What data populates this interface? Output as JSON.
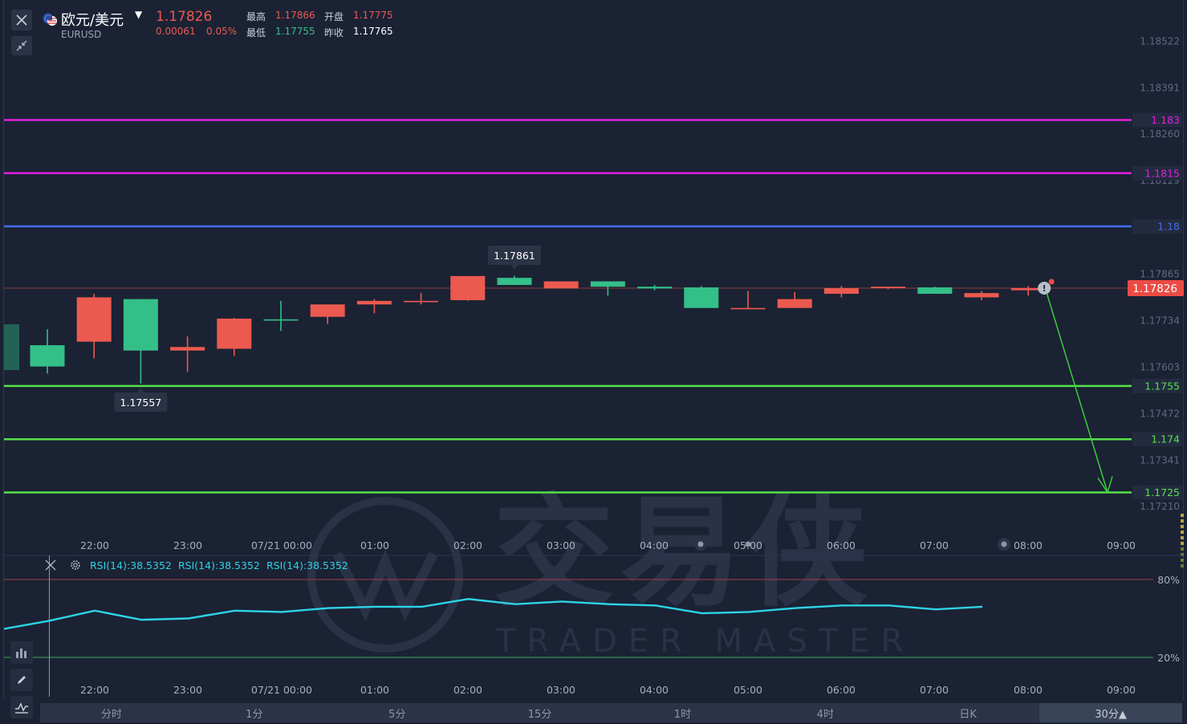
{
  "header": {
    "pair_name": "欧元/美元",
    "symbol": "EURUSD",
    "price": "1.17826",
    "change": "0.00061",
    "change_pct": "0.05%",
    "high_label": "最高",
    "high": "1.17866",
    "open_label": "开盘",
    "open": "1.17775",
    "low_label": "最低",
    "low": "1.17755",
    "prev_close_label": "昨收",
    "prev_close": "1.17765"
  },
  "icons": {
    "close": "close-icon",
    "collapse": "collapse-arrows-icon",
    "flag": "eu-us-flag-icon",
    "settings": "gear-icon",
    "pencil": "pencil-icon",
    "indicator": "indicator-icon",
    "watermark": "trader-master-logo"
  },
  "price_axis": [
    "1.18522",
    "1.18391",
    "1.18260",
    "1.18129",
    "1.17865",
    "1.17734",
    "1.17603",
    "1.17472",
    "1.17341",
    "1.17210"
  ],
  "levels": [
    {
      "label": "1.183",
      "color": "#e020e0"
    },
    {
      "label": "1.1815",
      "color": "#e020e0"
    },
    {
      "label": "1.18",
      "color": "#3f6ff0"
    },
    {
      "label": "1.1755",
      "color": "#55e04a"
    },
    {
      "label": "1.174",
      "color": "#55e04a"
    },
    {
      "label": "1.1725",
      "color": "#55e04a"
    }
  ],
  "current_price_tag": "1.17826",
  "high_tooltip": "1.17861",
  "low_tooltip": "1.17557",
  "time_axis": [
    "22:00",
    "23:00",
    "07/21 00:00",
    "01:00",
    "02:00",
    "03:00",
    "04:00",
    "05:00",
    "06:00",
    "07:00",
    "08:00",
    "09:00"
  ],
  "rsi": {
    "labels": [
      "RSI(14):38.5352",
      "RSI(14):38.5352",
      "RSI(14):38.5352"
    ],
    "upper": "80%",
    "lower": "20%",
    "values": [
      42,
      48,
      56,
      49,
      50,
      56,
      55,
      58,
      59,
      59,
      65,
      61,
      63,
      61,
      60,
      54,
      55,
      58,
      60,
      60,
      57,
      59
    ]
  },
  "watermark": {
    "brand": "交易侠",
    "brand_en": "TRADER MASTER"
  },
  "tabs": [
    "分时",
    "1分",
    "5分",
    "15分",
    "1时",
    "4时",
    "日K",
    "30分▲"
  ],
  "colors": {
    "up": "#ec5a4f",
    "down": "#34bf89",
    "rsi": "#2ed3e6",
    "bg": "#1b2234",
    "forecast": "#3bd63b"
  },
  "chart_data": {
    "type": "candlestick",
    "title": "EURUSD",
    "interval": "30分",
    "x_labels": [
      "22:00",
      "23:00",
      "07/21 00:00",
      "01:00",
      "02:00",
      "03:00",
      "04:00",
      "05:00",
      "06:00",
      "07:00",
      "08:00",
      "09:00"
    ],
    "ylim": [
      1.1719,
      1.1855
    ],
    "candles": [
      {
        "open": 1.17665,
        "close": 1.17605,
        "high": 1.1771,
        "low": 1.17585
      },
      {
        "open": 1.17675,
        "close": 1.178,
        "high": 1.1781,
        "low": 1.17628
      },
      {
        "open": 1.17795,
        "close": 1.1765,
        "high": 1.17795,
        "low": 1.17557
      },
      {
        "open": 1.1765,
        "close": 1.1766,
        "high": 1.1769,
        "low": 1.1759
      },
      {
        "open": 1.17655,
        "close": 1.1774,
        "high": 1.17742,
        "low": 1.17635
      },
      {
        "open": 1.17738,
        "close": 1.17735,
        "high": 1.1779,
        "low": 1.17705
      },
      {
        "open": 1.17745,
        "close": 1.1778,
        "high": 1.1778,
        "low": 1.17725
      },
      {
        "open": 1.1778,
        "close": 1.1779,
        "high": 1.17795,
        "low": 1.17755
      },
      {
        "open": 1.1779,
        "close": 1.1779,
        "high": 1.17812,
        "low": 1.1778
      },
      {
        "open": 1.17792,
        "close": 1.1786,
        "high": 1.1786,
        "low": 1.1779
      },
      {
        "open": 1.17855,
        "close": 1.17835,
        "high": 1.17861,
        "low": 1.17835
      },
      {
        "open": 1.17825,
        "close": 1.17845,
        "high": 1.17845,
        "low": 1.17825
      },
      {
        "open": 1.17845,
        "close": 1.1783,
        "high": 1.17845,
        "low": 1.17805
      },
      {
        "open": 1.1783,
        "close": 1.17825,
        "high": 1.17835,
        "low": 1.1782
      },
      {
        "open": 1.17828,
        "close": 1.1777,
        "high": 1.17832,
        "low": 1.1777
      },
      {
        "open": 1.1777,
        "close": 1.1777,
        "high": 1.17818,
        "low": 1.17768
      },
      {
        "open": 1.1777,
        "close": 1.17795,
        "high": 1.17815,
        "low": 1.1777
      },
      {
        "open": 1.1781,
        "close": 1.17826,
        "high": 1.17832,
        "low": 1.178
      },
      {
        "open": 1.17826,
        "close": 1.1783,
        "high": 1.1783,
        "low": 1.17823
      },
      {
        "open": 1.17828,
        "close": 1.1781,
        "high": 1.1783,
        "low": 1.1781
      },
      {
        "open": 1.178,
        "close": 1.17812,
        "high": 1.17818,
        "low": 1.17792
      },
      {
        "open": 1.1782,
        "close": 1.17826,
        "high": 1.17832,
        "low": 1.17805
      }
    ],
    "levels": [
      1.183,
      1.1815,
      1.18,
      1.1755,
      1.174,
      1.1725
    ],
    "forecast": {
      "from": 1.17826,
      "to": 1.1725
    },
    "grid": false
  }
}
